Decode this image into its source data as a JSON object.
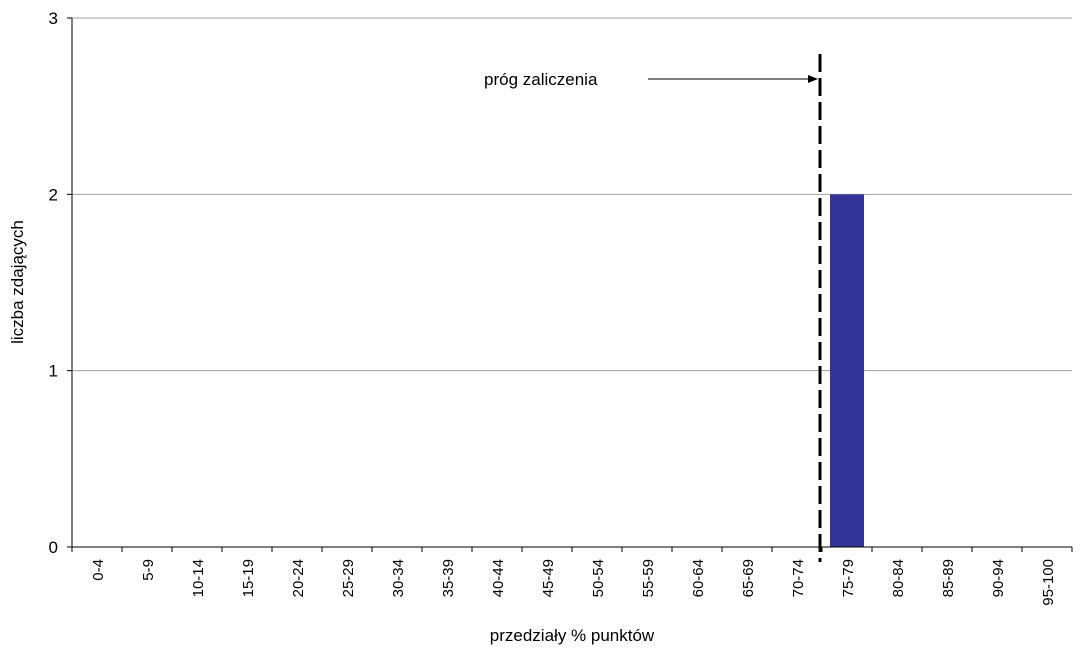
{
  "chart_data": {
    "type": "bar",
    "title": "",
    "xlabel": "przedziały % punktów",
    "ylabel": "liczba zdających",
    "ylim": [
      0,
      3
    ],
    "yticks": [
      0,
      1,
      2,
      3
    ],
    "grid": true,
    "categories": [
      "0-4",
      "5-9",
      "10-14",
      "15-19",
      "20-24",
      "25-29",
      "30-34",
      "35-39",
      "40-44",
      "45-49",
      "50-54",
      "55-59",
      "60-64",
      "65-69",
      "70-74",
      "75-79",
      "80-84",
      "85-89",
      "90-94",
      "95-100"
    ],
    "values": [
      0,
      0,
      0,
      0,
      0,
      0,
      0,
      0,
      0,
      0,
      0,
      0,
      0,
      0,
      0,
      2,
      0,
      0,
      0,
      0
    ],
    "bar_color": "#333399",
    "threshold": {
      "label": "próg zaliczenia",
      "between_categories": [
        "70-74",
        "75-79"
      ]
    }
  }
}
